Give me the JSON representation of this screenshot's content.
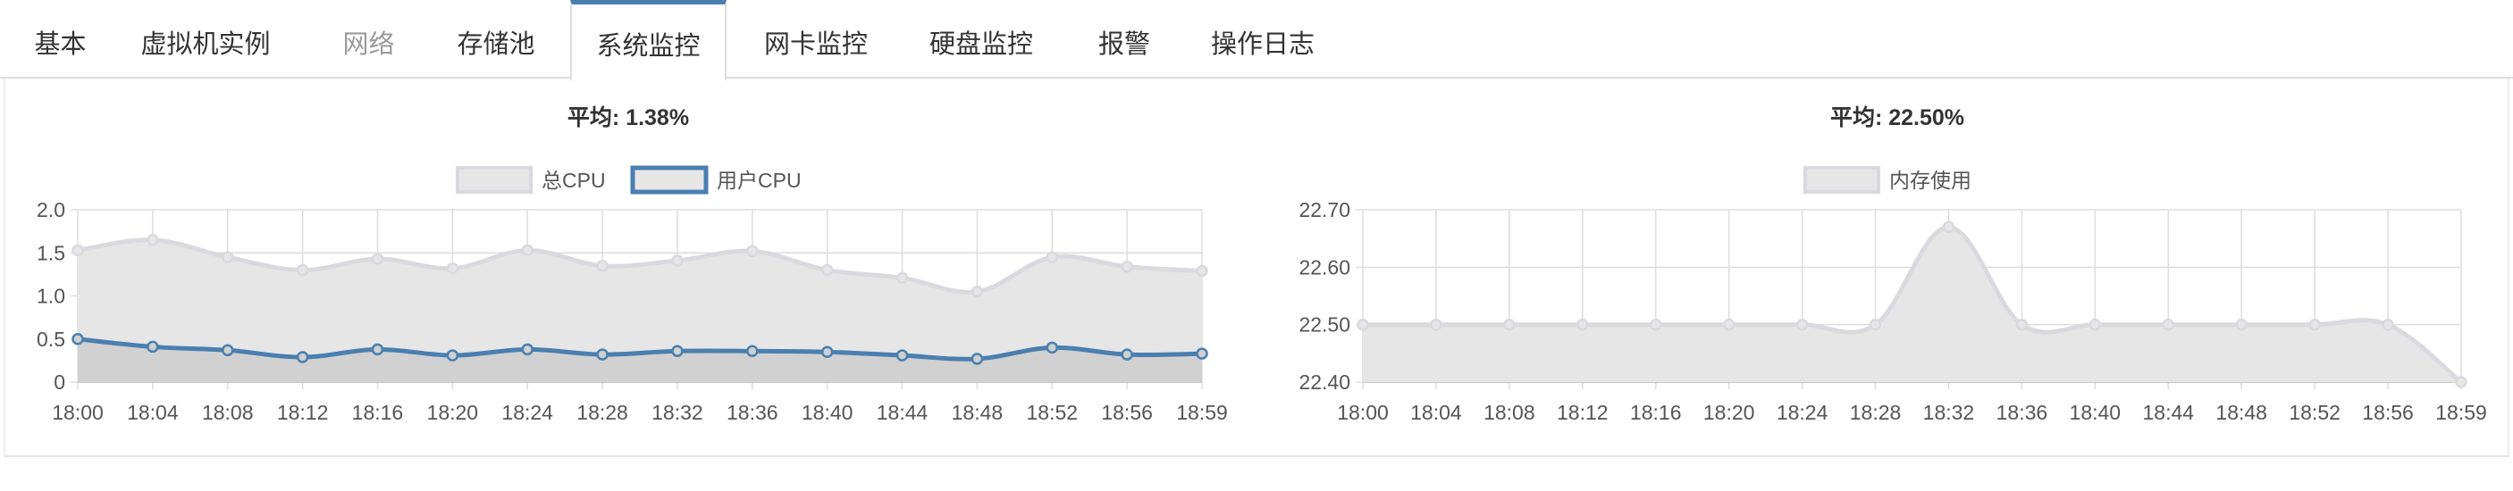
{
  "tabs": [
    {
      "label": "基本",
      "state": "normal"
    },
    {
      "label": "虚拟机实例",
      "state": "normal"
    },
    {
      "label": "网络",
      "state": "disabled"
    },
    {
      "label": "存储池",
      "state": "normal"
    },
    {
      "label": "系统监控",
      "state": "active"
    },
    {
      "label": "网卡监控",
      "state": "normal"
    },
    {
      "label": "硬盘监控",
      "state": "normal"
    },
    {
      "label": "报警",
      "state": "normal"
    },
    {
      "label": "操作日志",
      "state": "normal"
    }
  ],
  "colors": {
    "accent": "#4a7fb0",
    "total_cpu_line": "#d9d9e0",
    "total_cpu_fill": "#e6e6e6",
    "user_cpu_line": "#4a7fb0",
    "grid": "#dddddd"
  },
  "chart_data": [
    {
      "type": "area",
      "title": "平均: 1.38%",
      "legend_position": "top-center",
      "grid": true,
      "x": [
        "18:00",
        "18:04",
        "18:08",
        "18:12",
        "18:16",
        "18:20",
        "18:24",
        "18:28",
        "18:32",
        "18:36",
        "18:40",
        "18:44",
        "18:48",
        "18:52",
        "18:56",
        "18:59"
      ],
      "ylim": [
        0,
        2.0
      ],
      "yticks": [
        "0",
        "0.5",
        "1.0",
        "1.5",
        "2.0"
      ],
      "series": [
        {
          "name": "总CPU",
          "values": [
            1.53,
            1.65,
            1.45,
            1.3,
            1.43,
            1.32,
            1.53,
            1.35,
            1.41,
            1.52,
            1.3,
            1.21,
            1.05,
            1.45,
            1.34,
            1.29
          ]
        },
        {
          "name": "用户CPU",
          "values": [
            0.5,
            0.41,
            0.37,
            0.29,
            0.38,
            0.31,
            0.38,
            0.32,
            0.36,
            0.36,
            0.35,
            0.31,
            0.27,
            0.4,
            0.32,
            0.33
          ]
        }
      ]
    },
    {
      "type": "area",
      "title": "平均: 22.50%",
      "legend_position": "top-center",
      "grid": true,
      "x": [
        "18:00",
        "18:04",
        "18:08",
        "18:12",
        "18:16",
        "18:20",
        "18:24",
        "18:28",
        "18:32",
        "18:36",
        "18:40",
        "18:44",
        "18:48",
        "18:52",
        "18:56",
        "18:59"
      ],
      "ylim": [
        22.4,
        22.7
      ],
      "yticks": [
        "22.40",
        "22.50",
        "22.60",
        "22.70"
      ],
      "series": [
        {
          "name": "内存使用",
          "values": [
            22.5,
            22.5,
            22.5,
            22.5,
            22.5,
            22.5,
            22.5,
            22.5,
            22.67,
            22.5,
            22.5,
            22.5,
            22.5,
            22.5,
            22.5,
            22.4
          ]
        }
      ]
    }
  ]
}
